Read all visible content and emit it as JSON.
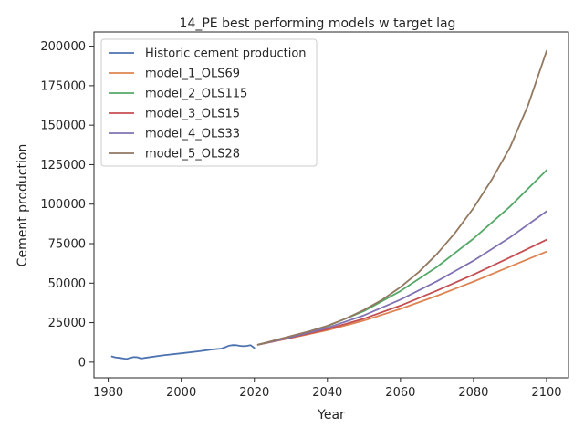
{
  "chart_data": {
    "type": "line",
    "title": "14_PE best performing models w target lag",
    "xlabel": "Year",
    "ylabel": "Cement production",
    "xlim": [
      1976.1,
      2106.0
    ],
    "ylim": [
      -9900,
      209000
    ],
    "xticks": [
      1980,
      2000,
      2020,
      2040,
      2060,
      2080,
      2100
    ],
    "xtick_labels": [
      "1980",
      "2000",
      "2020",
      "2040",
      "2060",
      "2080",
      "2100"
    ],
    "yticks": [
      0,
      25000,
      50000,
      75000,
      100000,
      125000,
      150000,
      175000,
      200000
    ],
    "ytick_labels": [
      "0",
      "25000",
      "50000",
      "75000",
      "100000",
      "125000",
      "150000",
      "175000",
      "200000"
    ],
    "grid": false,
    "legend_position": "top-left",
    "series": [
      {
        "name": "Historic cement production",
        "color": "#4c72b0",
        "x": [
          1981,
          1982,
          1983,
          1984,
          1985,
          1986,
          1987,
          1988,
          1989,
          1990,
          1995,
          2000,
          2005,
          2008,
          2011,
          2012,
          2013,
          2014,
          2015,
          2016,
          2017,
          2018,
          2019,
          2020
        ],
        "y": [
          3600,
          3000,
          2700,
          2400,
          2000,
          2700,
          3200,
          3100,
          2300,
          2700,
          4300,
          5600,
          6900,
          7900,
          8600,
          9400,
          10400,
          10800,
          10700,
          10300,
          10100,
          10300,
          10700,
          9000
        ]
      },
      {
        "name": "model_1_OLS69",
        "color": "#dd8452",
        "x": [
          2021,
          2030,
          2040,
          2050,
          2060,
          2070,
          2080,
          2090,
          2100
        ],
        "y": [
          11000,
          15300,
          20200,
          26300,
          33700,
          42000,
          51000,
          60500,
          70000
        ]
      },
      {
        "name": "model_2_OLS115",
        "color": "#55a868",
        "x": [
          2021,
          2030,
          2040,
          2050,
          2060,
          2070,
          2080,
          2090,
          2100
        ],
        "y": [
          11000,
          16000,
          22800,
          32300,
          45000,
          60300,
          78200,
          98500,
          121500
        ]
      },
      {
        "name": "model_3_OLS15",
        "color": "#c44e52",
        "x": [
          2021,
          2030,
          2040,
          2050,
          2060,
          2070,
          2080,
          2090,
          2100
        ],
        "y": [
          11000,
          15500,
          20800,
          27500,
          35800,
          45300,
          55400,
          66300,
          77500
        ]
      },
      {
        "name": "model_4_OLS33",
        "color": "#8172b3",
        "x": [
          2021,
          2030,
          2040,
          2050,
          2060,
          2070,
          2080,
          2090,
          2100
        ],
        "y": [
          11000,
          15800,
          21700,
          29600,
          39600,
          51200,
          64200,
          79000,
          95500
        ]
      },
      {
        "name": "model_5_OLS28",
        "color": "#937860",
        "x": [
          2021,
          2025,
          2030,
          2035,
          2040,
          2045,
          2050,
          2055,
          2060,
          2065,
          2070,
          2075,
          2080,
          2085,
          2090,
          2095,
          2100
        ],
        "y": [
          11000,
          13500,
          16500,
          19500,
          23000,
          27500,
          33000,
          39500,
          47500,
          57000,
          68500,
          82000,
          97500,
          115500,
          136000,
          163000,
          197000
        ]
      }
    ]
  }
}
